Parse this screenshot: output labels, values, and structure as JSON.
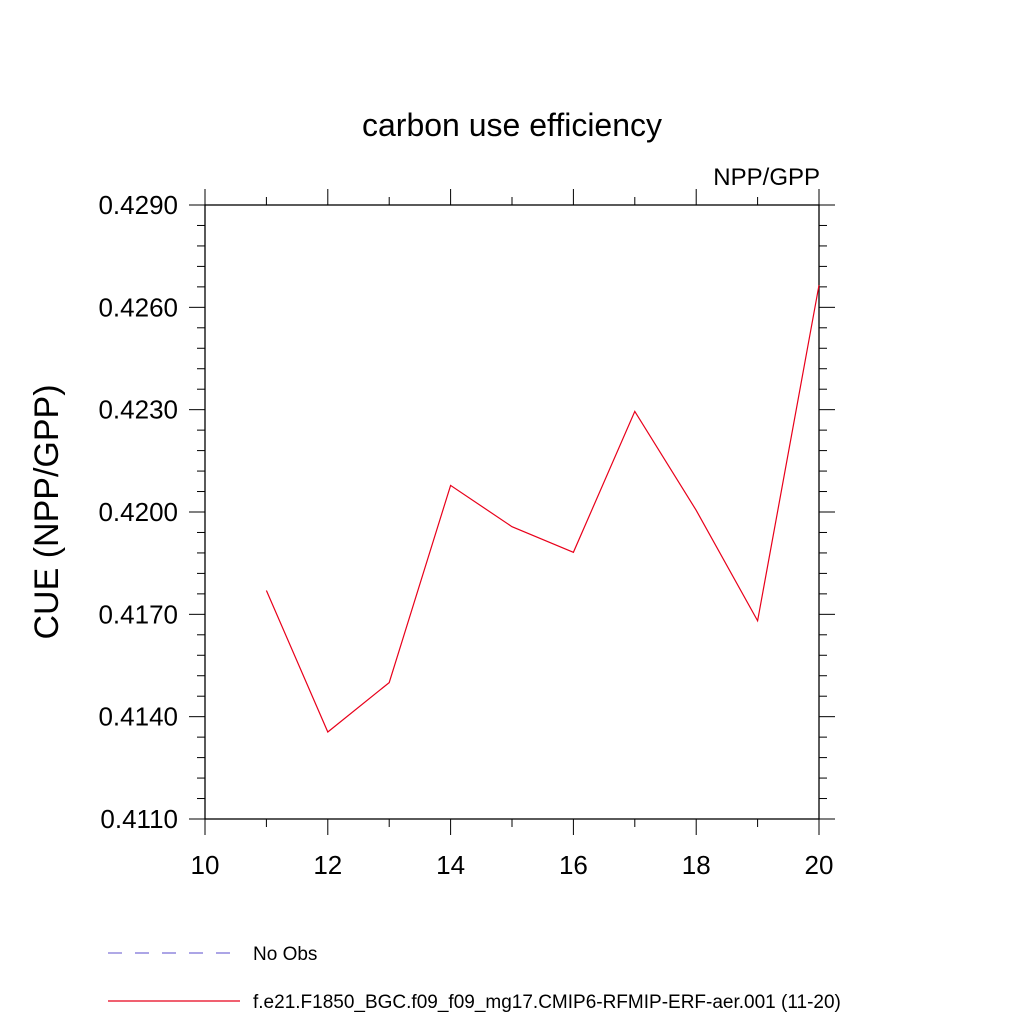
{
  "chart_data": {
    "type": "line",
    "title": "carbon use efficiency",
    "subtitle_right": "NPP/GPP",
    "ylabel": "CUE  (NPP/GPP)",
    "xlabel": "",
    "xlim": [
      10,
      20
    ],
    "ylim": [
      0.411,
      0.429
    ],
    "xticks": [
      10,
      12,
      14,
      16,
      18,
      20
    ],
    "yticks": [
      "0.4110",
      "0.4140",
      "0.4170",
      "0.4200",
      "0.4230",
      "0.4260",
      "0.4290"
    ],
    "ytick_values": [
      0.411,
      0.414,
      0.417,
      0.42,
      0.423,
      0.426,
      0.429
    ],
    "series": [
      {
        "name": "f.e21.F1850_BGC.f09_f09_mg17.CMIP6-RFMIP-ERF-aer.001 (11-20)",
        "color": "#e8001a",
        "x": [
          11,
          12,
          13,
          14,
          15,
          16,
          17,
          18,
          19,
          20
        ],
        "y": [
          0.4177,
          0.41355,
          0.415,
          0.42078,
          0.41957,
          0.41882,
          0.42295,
          0.42005,
          0.41681,
          0.42665
        ]
      }
    ],
    "legend": [
      {
        "label": "No Obs",
        "color": "#7b6fd6",
        "style": "dashed"
      },
      {
        "label": "f.e21.F1850_BGC.f09_f09_mg17.CMIP6-RFMIP-ERF-aer.001 (11-20)",
        "color": "#e8001a",
        "style": "solid"
      }
    ],
    "legend_position": "bottom",
    "grid": false
  }
}
